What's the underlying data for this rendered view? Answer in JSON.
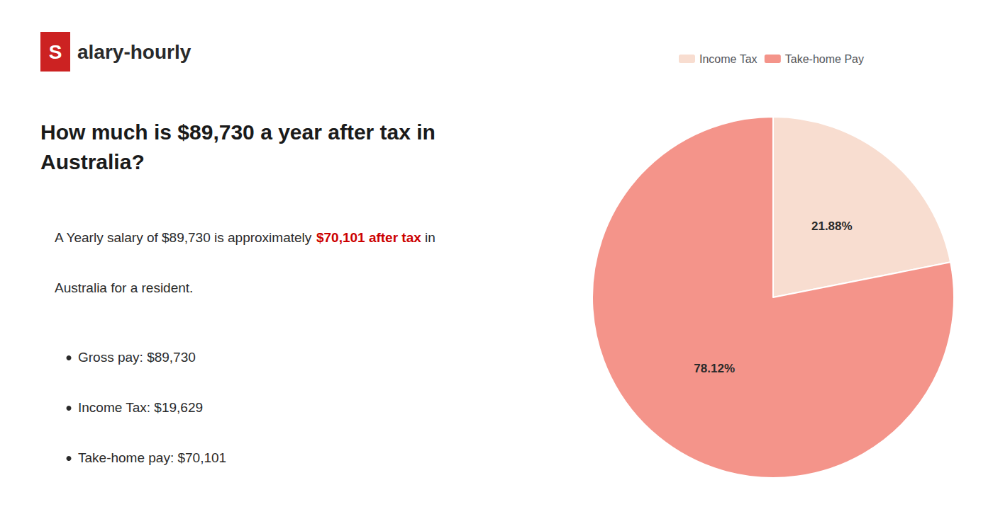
{
  "chart_data": {
    "type": "pie",
    "title": "How much is $89,730 a year after tax in\nAustralia?",
    "categories": [
      "Income Tax",
      "Take-home Pay"
    ],
    "values": [
      21.88,
      78.12
    ],
    "value_labels": [
      "21.88%",
      "78.12%"
    ],
    "colors": [
      "#f8ddd0",
      "#f4948a"
    ],
    "data_labels": true,
    "legend": "top",
    "annotations": [
      {
        "parts": [
          {
            "text": "S",
            "color": "#ffffff",
            "background": "#cc2222"
          },
          {
            "text": "alary-hourly"
          }
        ]
      },
      {
        "parts": [
          {
            "text": "A Yearly salary of $89,730 is approximately "
          },
          {
            "text": "$70,101 after tax",
            "color": "#cc0000"
          },
          {
            "text": " in"
          }
        ]
      },
      {
        "text": "Australia for a resident."
      },
      {
        "text": "Gross pay: $89,730",
        "marker": "bullet"
      },
      {
        "text": "Income Tax: $19,629",
        "marker": "bullet"
      },
      {
        "text": "Take-home pay: $70,101",
        "marker": "bullet"
      }
    ]
  }
}
